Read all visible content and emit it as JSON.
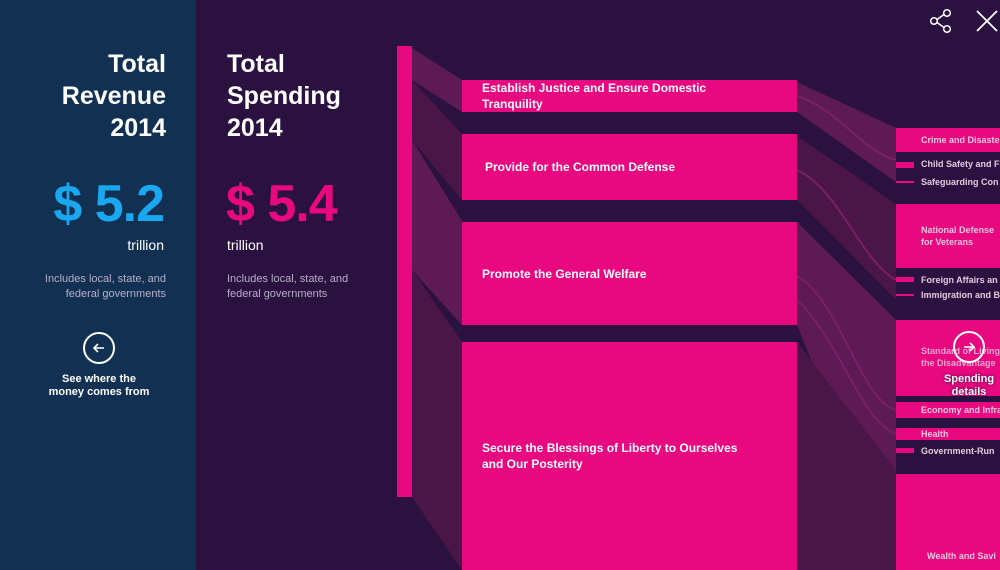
{
  "revenue": {
    "title_line1": "Total",
    "title_line2": "Revenue",
    "title_line3": "2014",
    "amount": "$ 5.2",
    "unit": "trillion",
    "note_line1": "Includes local, state, and",
    "note_line2": "federal governments",
    "back_button_line1": "See where the",
    "back_button_line2": "money comes from"
  },
  "spending": {
    "title_line1": "Total",
    "title_line2": "Spending",
    "title_line3": "2014",
    "amount": "$ 5.4",
    "unit": "trillion",
    "note_line1": "Includes local, state, and",
    "note_line2": "federal governments"
  },
  "goals": [
    {
      "label": "Establish Justice and Ensure Domestic Tranquility"
    },
    {
      "label": "Provide for the Common Defense"
    },
    {
      "label": "Promote the General Welfare"
    },
    {
      "label": "Secure the Blessings of Liberty to Ourselves and Our Posterity"
    }
  ],
  "details": [
    {
      "label": "Crime and Disaste"
    },
    {
      "label": "Child Safety and F"
    },
    {
      "label": "Safeguarding Con"
    },
    {
      "label": "National Defense"
    },
    {
      "label": "for Veterans"
    },
    {
      "label": "Foreign Affairs an"
    },
    {
      "label": "Immigration and B"
    },
    {
      "label": "Standard of Living"
    },
    {
      "label": "the Disadvantage"
    },
    {
      "label": "Economy and Infra"
    },
    {
      "label": "Health"
    },
    {
      "label": "Government-Run"
    },
    {
      "label": "Wealth and Savi"
    }
  ],
  "next_button": {
    "line1": "Spending",
    "line2": "details"
  },
  "icons": {
    "share": "share-icon",
    "close": "close-icon",
    "back": "arrow-left-icon",
    "next": "arrow-right-icon"
  },
  "colors": {
    "revenue_accent": "#19a8f0",
    "spending_accent": "#e8087f",
    "revenue_bg": "#123052",
    "spending_bg": "#2b1140"
  }
}
